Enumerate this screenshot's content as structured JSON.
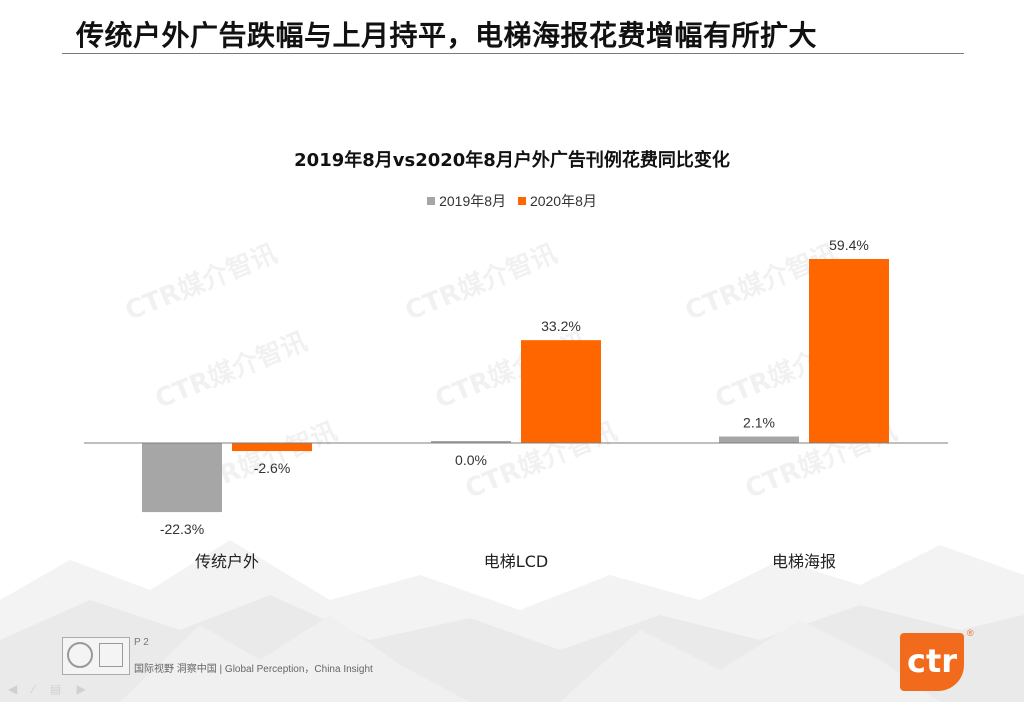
{
  "page": {
    "title": "传统户外广告跌幅与上月持平，电梯海报花费增幅有所扩大",
    "watermark_text": "CTR媒介智讯",
    "footer": {
      "page_number": "P 2",
      "slogan": "国际视野  洞察中国 |   Global Perception，China Insight"
    },
    "logo": {
      "text": "ctr",
      "mark": "®"
    }
  },
  "colors": {
    "series_2019": "#a6a6a6",
    "series_2020": "#ff6600",
    "axis": "#7f7f7f"
  },
  "chart_data": {
    "type": "bar",
    "title": "2019年8月vs2020年8月户外广告刊例花费同比变化",
    "categories": [
      "传统户外",
      "电梯LCD",
      "电梯海报"
    ],
    "series": [
      {
        "name": "2019年8月",
        "values": [
          -22.3,
          0.0,
          2.1
        ],
        "labels": [
          "-22.3%",
          "0.0%",
          "2.1%"
        ]
      },
      {
        "name": "2020年8月",
        "values": [
          -2.6,
          33.2,
          59.4
        ],
        "labels": [
          "-2.6%",
          "33.2%",
          "59.4%"
        ]
      }
    ],
    "unit": "%",
    "ylim": [
      -25,
      65
    ],
    "legend_position": "top-center",
    "grid": false
  }
}
